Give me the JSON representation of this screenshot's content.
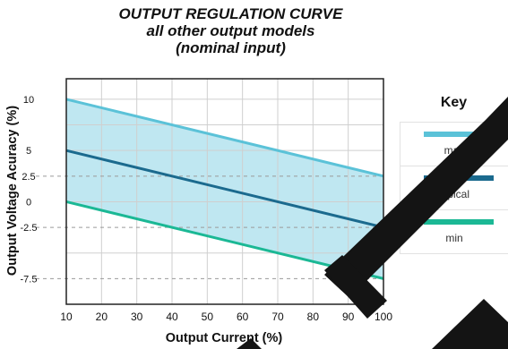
{
  "chart_data": {
    "type": "line",
    "title_lines": [
      "OUTPUT REGULATION CURVE",
      "all other output models",
      "(nominal input)"
    ],
    "xlabel": "Output Current (%)",
    "ylabel": "Output Voltage Acuracy (%)",
    "xlim": [
      10,
      100
    ],
    "ylim": [
      -10,
      12
    ],
    "x_ticks": [
      "10",
      "20",
      "30",
      "40",
      "50",
      "60",
      "70",
      "80",
      "90",
      "100"
    ],
    "y_ticks": [
      {
        "value": 10,
        "label": "10"
      },
      {
        "value": 5,
        "label": "5"
      },
      {
        "value": 2.5,
        "label": "2.5"
      },
      {
        "value": 0,
        "label": "0"
      },
      {
        "value": -2.5,
        "label": "-2.5"
      },
      {
        "value": -7.5,
        "label": "-7.5"
      }
    ],
    "reference_lines": [
      2.5,
      -2.5,
      -7.5
    ],
    "grid": true,
    "shaded_band": {
      "between": [
        "max",
        "min"
      ],
      "color": "#bfe7f1"
    },
    "series": [
      {
        "name": "max",
        "color": "#5bc2d8",
        "x": [
          10,
          100
        ],
        "y": [
          10,
          2.5
        ]
      },
      {
        "name": "typical",
        "color": "#1b6a8e",
        "x": [
          10,
          100
        ],
        "y": [
          5,
          -2.5
        ]
      },
      {
        "name": "min",
        "color": "#1bb895",
        "x": [
          10,
          100
        ],
        "y": [
          0,
          -7.5
        ]
      }
    ],
    "legend": {
      "title": "Key",
      "position": "right",
      "items": [
        "max",
        "typical",
        "min"
      ]
    }
  }
}
